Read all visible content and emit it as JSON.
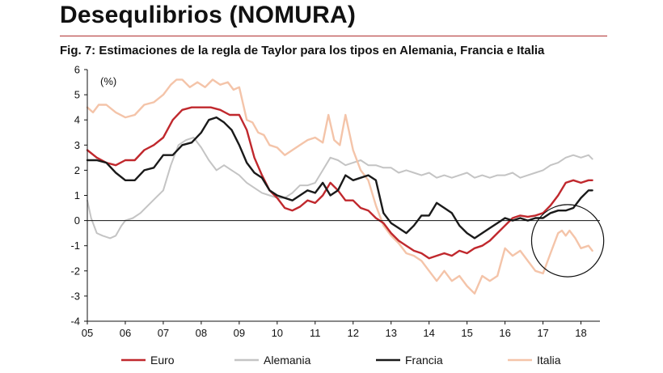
{
  "title": "Desequlibrios (NOMURA)",
  "subtitle": "Fig. 7: Estimaciones de la regla de Taylor para los tipos en Alemania, Francia e Italia",
  "chart_data": {
    "type": "line",
    "unit_label": "(%)",
    "ylim": [
      -4,
      6
    ],
    "yticks": [
      -4,
      -3,
      -2,
      -1,
      0,
      1,
      2,
      3,
      4,
      5,
      6
    ],
    "xlim": [
      2005,
      2018.5
    ],
    "xticks": [
      {
        "label": "05",
        "value": 2005
      },
      {
        "label": "06",
        "value": 2006
      },
      {
        "label": "07",
        "value": 2007
      },
      {
        "label": "08",
        "value": 2008
      },
      {
        "label": "09",
        "value": 2009
      },
      {
        "label": "10",
        "value": 2010
      },
      {
        "label": "11",
        "value": 2011
      },
      {
        "label": "12",
        "value": 2012
      },
      {
        "label": "13",
        "value": 2013
      },
      {
        "label": "14",
        "value": 2014
      },
      {
        "label": "15",
        "value": 2015
      },
      {
        "label": "16",
        "value": 2016
      },
      {
        "label": "17",
        "value": 2017
      },
      {
        "label": "18",
        "value": 2018
      }
    ],
    "legend_position": "bottom",
    "annotation": {
      "shape": "circle",
      "center": [
        2017.65,
        -0.8
      ],
      "radius_years": 0.95
    },
    "series": [
      {
        "name": "Euro",
        "color": "#c0282d",
        "width": 2.4,
        "points": [
          [
            2005.0,
            2.8
          ],
          [
            2005.25,
            2.5
          ],
          [
            2005.5,
            2.3
          ],
          [
            2005.75,
            2.2
          ],
          [
            2006.0,
            2.4
          ],
          [
            2006.25,
            2.4
          ],
          [
            2006.5,
            2.8
          ],
          [
            2006.75,
            3.0
          ],
          [
            2007.0,
            3.3
          ],
          [
            2007.25,
            4.0
          ],
          [
            2007.5,
            4.4
          ],
          [
            2007.75,
            4.5
          ],
          [
            2008.0,
            4.5
          ],
          [
            2008.25,
            4.5
          ],
          [
            2008.5,
            4.4
          ],
          [
            2008.75,
            4.2
          ],
          [
            2009.0,
            4.2
          ],
          [
            2009.2,
            3.6
          ],
          [
            2009.4,
            2.5
          ],
          [
            2009.6,
            1.8
          ],
          [
            2009.8,
            1.2
          ],
          [
            2010.0,
            0.9
          ],
          [
            2010.2,
            0.5
          ],
          [
            2010.4,
            0.4
          ],
          [
            2010.6,
            0.55
          ],
          [
            2010.8,
            0.8
          ],
          [
            2011.0,
            0.7
          ],
          [
            2011.2,
            1.0
          ],
          [
            2011.4,
            1.5
          ],
          [
            2011.6,
            1.2
          ],
          [
            2011.8,
            0.8
          ],
          [
            2012.0,
            0.8
          ],
          [
            2012.2,
            0.5
          ],
          [
            2012.4,
            0.4
          ],
          [
            2012.6,
            0.1
          ],
          [
            2012.8,
            -0.1
          ],
          [
            2013.0,
            -0.5
          ],
          [
            2013.2,
            -0.8
          ],
          [
            2013.4,
            -1.0
          ],
          [
            2013.6,
            -1.2
          ],
          [
            2013.8,
            -1.3
          ],
          [
            2014.0,
            -1.5
          ],
          [
            2014.2,
            -1.4
          ],
          [
            2014.4,
            -1.3
          ],
          [
            2014.6,
            -1.4
          ],
          [
            2014.8,
            -1.2
          ],
          [
            2015.0,
            -1.3
          ],
          [
            2015.2,
            -1.1
          ],
          [
            2015.4,
            -1.0
          ],
          [
            2015.6,
            -0.8
          ],
          [
            2015.8,
            -0.5
          ],
          [
            2016.0,
            -0.2
          ],
          [
            2016.2,
            0.1
          ],
          [
            2016.4,
            0.2
          ],
          [
            2016.6,
            0.15
          ],
          [
            2016.8,
            0.2
          ],
          [
            2017.0,
            0.3
          ],
          [
            2017.2,
            0.6
          ],
          [
            2017.4,
            1.0
          ],
          [
            2017.6,
            1.5
          ],
          [
            2017.8,
            1.6
          ],
          [
            2018.0,
            1.5
          ],
          [
            2018.2,
            1.6
          ],
          [
            2018.3,
            1.6
          ]
        ]
      },
      {
        "name": "Alemania",
        "color": "#c4c4c4",
        "width": 2,
        "points": [
          [
            2005.0,
            0.8
          ],
          [
            2005.1,
            0.1
          ],
          [
            2005.25,
            -0.5
          ],
          [
            2005.4,
            -0.6
          ],
          [
            2005.6,
            -0.7
          ],
          [
            2005.75,
            -0.6
          ],
          [
            2005.9,
            -0.2
          ],
          [
            2006.0,
            0.0
          ],
          [
            2006.2,
            0.1
          ],
          [
            2006.4,
            0.3
          ],
          [
            2006.6,
            0.6
          ],
          [
            2006.8,
            0.9
          ],
          [
            2007.0,
            1.2
          ],
          [
            2007.2,
            2.2
          ],
          [
            2007.4,
            3.0
          ],
          [
            2007.6,
            3.2
          ],
          [
            2007.8,
            3.3
          ],
          [
            2008.0,
            2.9
          ],
          [
            2008.2,
            2.4
          ],
          [
            2008.4,
            2.0
          ],
          [
            2008.6,
            2.2
          ],
          [
            2008.8,
            2.0
          ],
          [
            2009.0,
            1.8
          ],
          [
            2009.2,
            1.5
          ],
          [
            2009.4,
            1.3
          ],
          [
            2009.6,
            1.1
          ],
          [
            2009.8,
            1.0
          ],
          [
            2010.0,
            0.9
          ],
          [
            2010.2,
            0.9
          ],
          [
            2010.4,
            1.1
          ],
          [
            2010.6,
            1.4
          ],
          [
            2010.8,
            1.4
          ],
          [
            2011.0,
            1.5
          ],
          [
            2011.2,
            2.0
          ],
          [
            2011.4,
            2.5
          ],
          [
            2011.6,
            2.4
          ],
          [
            2011.8,
            2.2
          ],
          [
            2012.0,
            2.3
          ],
          [
            2012.2,
            2.4
          ],
          [
            2012.4,
            2.2
          ],
          [
            2012.6,
            2.2
          ],
          [
            2012.8,
            2.1
          ],
          [
            2013.0,
            2.1
          ],
          [
            2013.2,
            1.9
          ],
          [
            2013.4,
            2.0
          ],
          [
            2013.6,
            1.9
          ],
          [
            2013.8,
            1.8
          ],
          [
            2014.0,
            1.9
          ],
          [
            2014.2,
            1.7
          ],
          [
            2014.4,
            1.8
          ],
          [
            2014.6,
            1.7
          ],
          [
            2014.8,
            1.8
          ],
          [
            2015.0,
            1.9
          ],
          [
            2015.2,
            1.7
          ],
          [
            2015.4,
            1.8
          ],
          [
            2015.6,
            1.7
          ],
          [
            2015.8,
            1.8
          ],
          [
            2016.0,
            1.8
          ],
          [
            2016.2,
            1.9
          ],
          [
            2016.4,
            1.7
          ],
          [
            2016.6,
            1.8
          ],
          [
            2016.8,
            1.9
          ],
          [
            2017.0,
            2.0
          ],
          [
            2017.2,
            2.2
          ],
          [
            2017.4,
            2.3
          ],
          [
            2017.6,
            2.5
          ],
          [
            2017.8,
            2.6
          ],
          [
            2018.0,
            2.5
          ],
          [
            2018.2,
            2.6
          ],
          [
            2018.3,
            2.45
          ]
        ]
      },
      {
        "name": "Francia",
        "color": "#1a1a1a",
        "width": 2.4,
        "points": [
          [
            2005.0,
            2.4
          ],
          [
            2005.25,
            2.4
          ],
          [
            2005.5,
            2.3
          ],
          [
            2005.75,
            1.9
          ],
          [
            2006.0,
            1.6
          ],
          [
            2006.25,
            1.6
          ],
          [
            2006.5,
            2.0
          ],
          [
            2006.75,
            2.1
          ],
          [
            2007.0,
            2.6
          ],
          [
            2007.25,
            2.6
          ],
          [
            2007.5,
            3.0
          ],
          [
            2007.75,
            3.1
          ],
          [
            2008.0,
            3.5
          ],
          [
            2008.2,
            4.0
          ],
          [
            2008.4,
            4.1
          ],
          [
            2008.6,
            3.9
          ],
          [
            2008.8,
            3.6
          ],
          [
            2009.0,
            3.0
          ],
          [
            2009.2,
            2.3
          ],
          [
            2009.4,
            1.9
          ],
          [
            2009.6,
            1.7
          ],
          [
            2009.8,
            1.2
          ],
          [
            2010.0,
            1.0
          ],
          [
            2010.2,
            0.9
          ],
          [
            2010.4,
            0.8
          ],
          [
            2010.6,
            1.0
          ],
          [
            2010.8,
            1.2
          ],
          [
            2011.0,
            1.1
          ],
          [
            2011.2,
            1.5
          ],
          [
            2011.4,
            1.0
          ],
          [
            2011.6,
            1.2
          ],
          [
            2011.8,
            1.8
          ],
          [
            2012.0,
            1.6
          ],
          [
            2012.2,
            1.7
          ],
          [
            2012.4,
            1.8
          ],
          [
            2012.6,
            1.6
          ],
          [
            2012.8,
            0.3
          ],
          [
            2013.0,
            -0.1
          ],
          [
            2013.2,
            -0.3
          ],
          [
            2013.4,
            -0.5
          ],
          [
            2013.6,
            -0.2
          ],
          [
            2013.8,
            0.2
          ],
          [
            2014.0,
            0.2
          ],
          [
            2014.2,
            0.7
          ],
          [
            2014.4,
            0.5
          ],
          [
            2014.6,
            0.3
          ],
          [
            2014.8,
            -0.2
          ],
          [
            2015.0,
            -0.5
          ],
          [
            2015.2,
            -0.7
          ],
          [
            2015.4,
            -0.5
          ],
          [
            2015.6,
            -0.3
          ],
          [
            2015.8,
            -0.1
          ],
          [
            2016.0,
            0.1
          ],
          [
            2016.2,
            0.0
          ],
          [
            2016.4,
            0.1
          ],
          [
            2016.6,
            0.0
          ],
          [
            2016.8,
            0.1
          ],
          [
            2017.0,
            0.1
          ],
          [
            2017.2,
            0.3
          ],
          [
            2017.4,
            0.4
          ],
          [
            2017.6,
            0.4
          ],
          [
            2017.8,
            0.5
          ],
          [
            2018.0,
            0.9
          ],
          [
            2018.2,
            1.2
          ],
          [
            2018.3,
            1.2
          ]
        ]
      },
      {
        "name": "Italia",
        "color": "#f4c4a9",
        "width": 2.4,
        "points": [
          [
            2005.0,
            4.5
          ],
          [
            2005.15,
            4.3
          ],
          [
            2005.3,
            4.6
          ],
          [
            2005.5,
            4.6
          ],
          [
            2005.75,
            4.3
          ],
          [
            2006.0,
            4.1
          ],
          [
            2006.25,
            4.2
          ],
          [
            2006.5,
            4.6
          ],
          [
            2006.75,
            4.7
          ],
          [
            2007.0,
            5.0
          ],
          [
            2007.2,
            5.4
          ],
          [
            2007.35,
            5.6
          ],
          [
            2007.5,
            5.6
          ],
          [
            2007.7,
            5.3
          ],
          [
            2007.9,
            5.5
          ],
          [
            2008.1,
            5.3
          ],
          [
            2008.3,
            5.6
          ],
          [
            2008.5,
            5.4
          ],
          [
            2008.7,
            5.5
          ],
          [
            2008.85,
            5.2
          ],
          [
            2009.0,
            5.3
          ],
          [
            2009.2,
            4.0
          ],
          [
            2009.35,
            3.9
          ],
          [
            2009.5,
            3.5
          ],
          [
            2009.65,
            3.4
          ],
          [
            2009.8,
            3.0
          ],
          [
            2010.0,
            2.9
          ],
          [
            2010.2,
            2.6
          ],
          [
            2010.4,
            2.8
          ],
          [
            2010.6,
            3.0
          ],
          [
            2010.8,
            3.2
          ],
          [
            2011.0,
            3.3
          ],
          [
            2011.2,
            3.1
          ],
          [
            2011.35,
            4.2
          ],
          [
            2011.5,
            3.2
          ],
          [
            2011.65,
            3.0
          ],
          [
            2011.8,
            4.2
          ],
          [
            2012.0,
            2.8
          ],
          [
            2012.2,
            2.0
          ],
          [
            2012.4,
            1.6
          ],
          [
            2012.6,
            0.6
          ],
          [
            2012.8,
            -0.2
          ],
          [
            2013.0,
            -0.6
          ],
          [
            2013.2,
            -0.9
          ],
          [
            2013.4,
            -1.3
          ],
          [
            2013.6,
            -1.4
          ],
          [
            2013.8,
            -1.6
          ],
          [
            2014.0,
            -2.0
          ],
          [
            2014.2,
            -2.4
          ],
          [
            2014.4,
            -2.0
          ],
          [
            2014.6,
            -2.4
          ],
          [
            2014.8,
            -2.2
          ],
          [
            2015.0,
            -2.6
          ],
          [
            2015.2,
            -2.9
          ],
          [
            2015.4,
            -2.2
          ],
          [
            2015.6,
            -2.4
          ],
          [
            2015.8,
            -2.2
          ],
          [
            2016.0,
            -1.1
          ],
          [
            2016.2,
            -1.4
          ],
          [
            2016.4,
            -1.2
          ],
          [
            2016.6,
            -1.6
          ],
          [
            2016.8,
            -2.0
          ],
          [
            2017.0,
            -2.1
          ],
          [
            2017.2,
            -1.3
          ],
          [
            2017.4,
            -0.5
          ],
          [
            2017.5,
            -0.4
          ],
          [
            2017.6,
            -0.6
          ],
          [
            2017.7,
            -0.4
          ],
          [
            2017.85,
            -0.7
          ],
          [
            2018.0,
            -1.1
          ],
          [
            2018.2,
            -1.0
          ],
          [
            2018.3,
            -1.2
          ]
        ]
      }
    ]
  }
}
